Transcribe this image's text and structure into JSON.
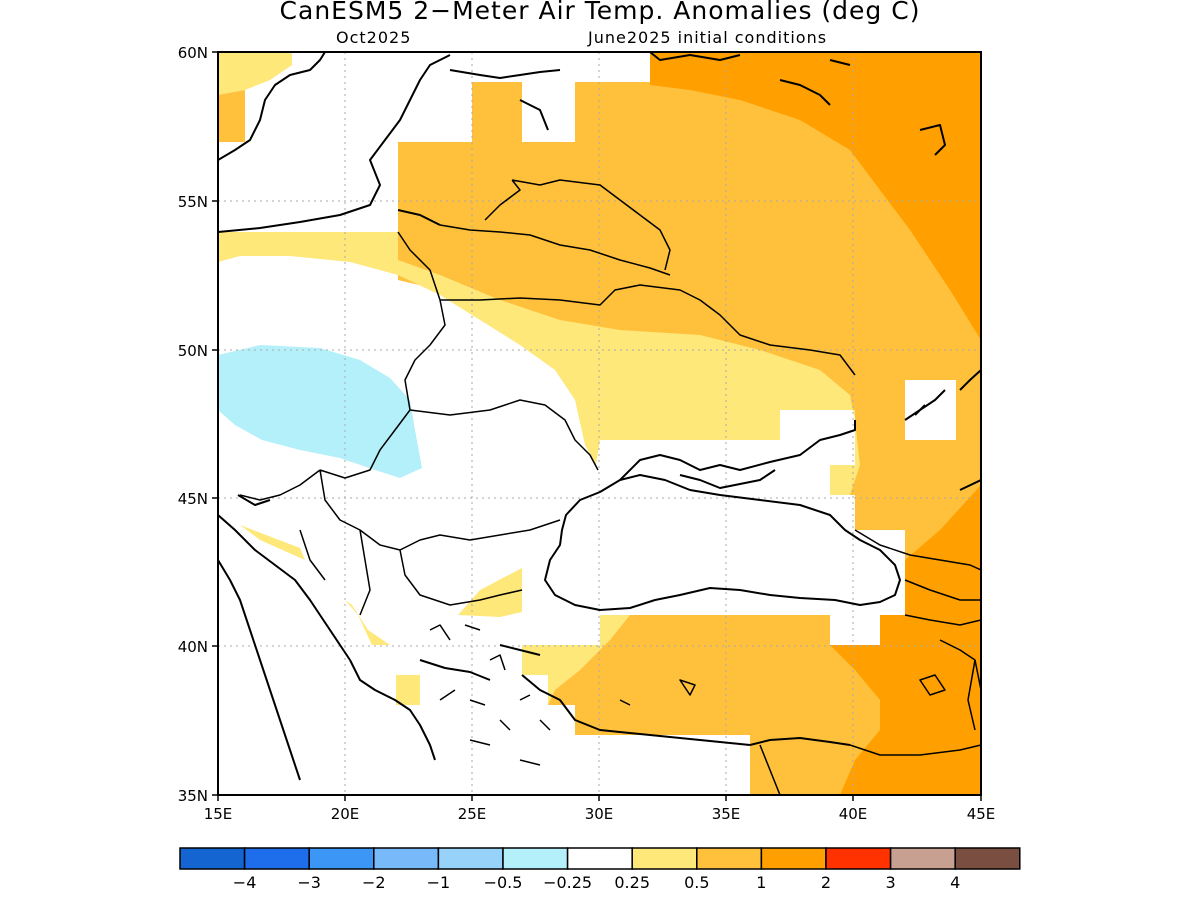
{
  "title": "CanESM5 2−Meter Air Temp. Anomalies (deg C)",
  "subtitle_left": "Oct2025",
  "subtitle_right": "June2025 initial conditions",
  "lat_labels": [
    "35N",
    "40N",
    "45N",
    "50N",
    "55N",
    "60N"
  ],
  "lon_labels": [
    "15E",
    "20E",
    "25E",
    "30E",
    "35E",
    "40E",
    "45E"
  ],
  "colorbar": {
    "colors": [
      "#1464d2",
      "#1e6eeb",
      "#3c96f5",
      "#78b9fa",
      "#96d2fa",
      "#b4f0fa",
      "#ffffff",
      "#fee87a",
      "#ffc03c",
      "#ffa000",
      "#ff3200",
      "#c8a092",
      "#7a4e40"
    ],
    "labels": [
      "−4",
      "−3",
      "−2",
      "−1",
      "−0.5",
      "−0.25",
      "0.25",
      "0.5",
      "1",
      "2",
      "3",
      "4"
    ]
  },
  "colors": {
    "cyan": "#b4f0fa",
    "yellow": "#fee87a",
    "light_orange": "#ffc03c",
    "orange": "#ffa000"
  }
}
